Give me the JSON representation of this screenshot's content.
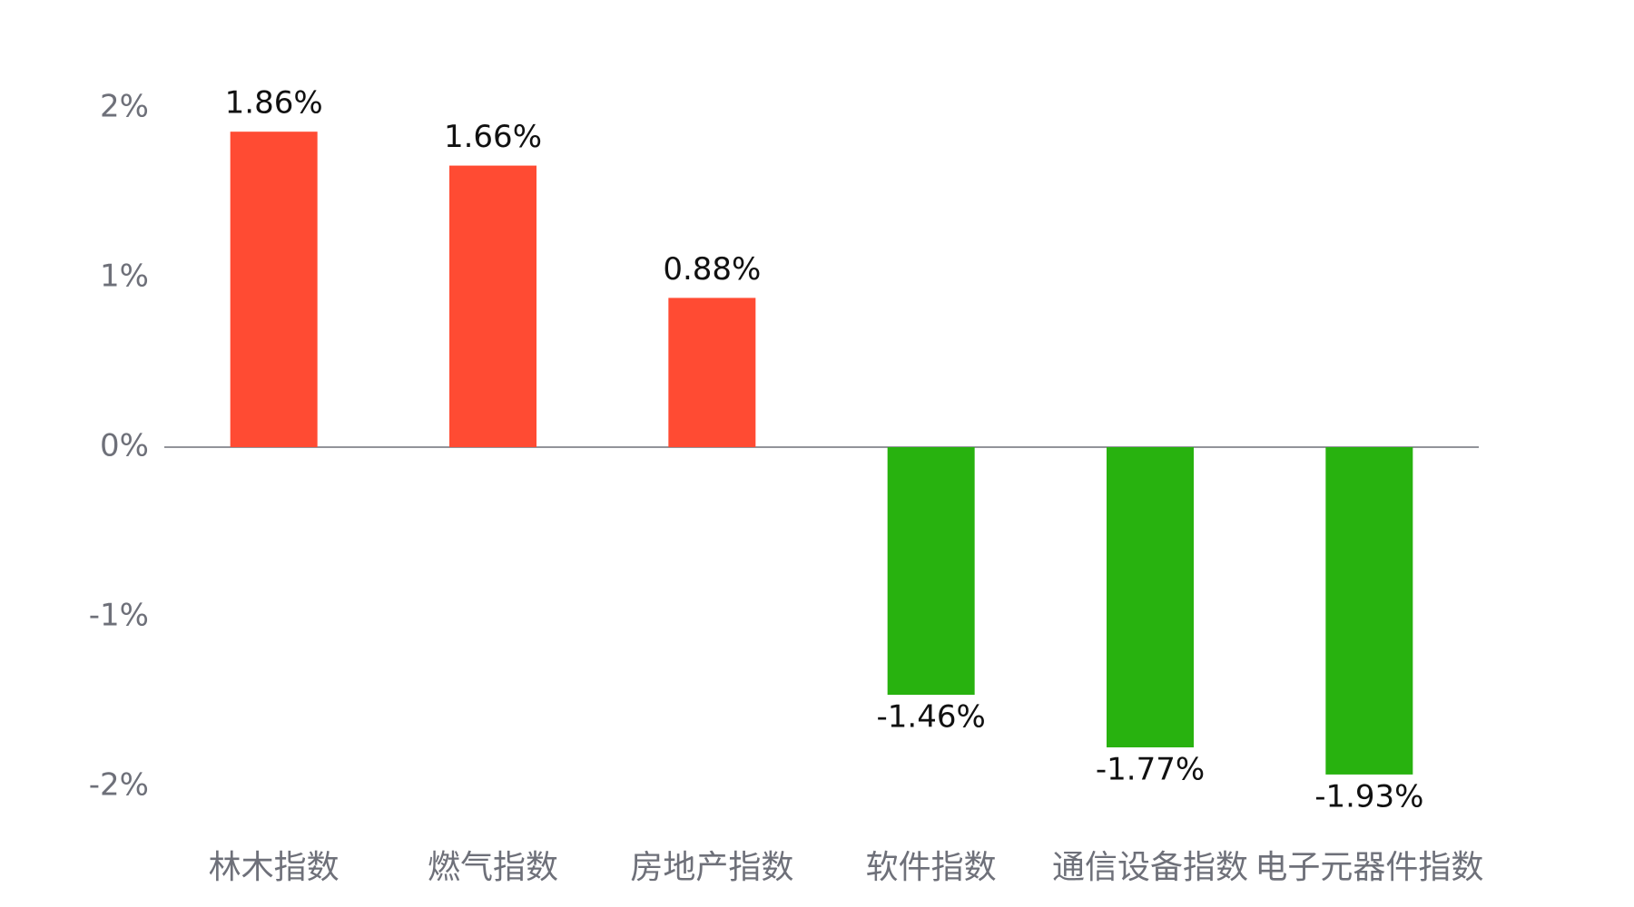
{
  "chart_data": {
    "type": "bar",
    "categories": [
      "林木指数",
      "燃气指数",
      "房地产指数",
      "软件指数",
      "通信设备指数",
      "电子元器件指数"
    ],
    "values": [
      1.86,
      1.66,
      0.88,
      -1.46,
      -1.77,
      -1.93
    ],
    "value_labels": [
      "1.86%",
      "1.66%",
      "0.88%",
      "-1.46%",
      "-1.77%",
      "-1.93%"
    ],
    "positive_color": "#ff4b33",
    "negative_color": "#28b20f",
    "ylim": [
      -2,
      2
    ],
    "yticks": [
      {
        "value": 2,
        "label": "2%"
      },
      {
        "value": 1,
        "label": "1%"
      },
      {
        "value": 0,
        "label": "0%"
      },
      {
        "value": -1,
        "label": "-1%"
      },
      {
        "value": -2,
        "label": "-2%"
      }
    ],
    "grid": false
  }
}
